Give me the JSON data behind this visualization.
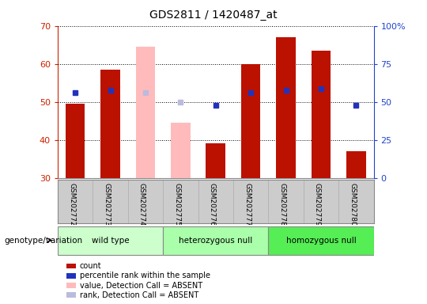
{
  "title": "GDS2811 / 1420487_at",
  "samples": [
    "GSM202772",
    "GSM202773",
    "GSM202774",
    "GSM202775",
    "GSM202776",
    "GSM202777",
    "GSM202778",
    "GSM202779",
    "GSM202780"
  ],
  "count_values": [
    49.5,
    58.5,
    null,
    null,
    39.0,
    60.0,
    67.0,
    63.5,
    37.0
  ],
  "rank_values": [
    52.5,
    53.0,
    null,
    null,
    49.0,
    52.5,
    53.0,
    53.5,
    49.0
  ],
  "absent_value_values": [
    null,
    null,
    64.5,
    44.5,
    null,
    null,
    null,
    null,
    null
  ],
  "absent_rank_values": [
    null,
    null,
    52.5,
    50.0,
    null,
    null,
    null,
    null,
    null
  ],
  "ylim": [
    30,
    70
  ],
  "yticks": [
    30,
    40,
    50,
    60,
    70
  ],
  "right_yticks_vals": [
    0,
    25,
    50,
    75,
    100
  ],
  "right_yticks_labels": [
    "0",
    "25",
    "50",
    "75",
    "100%"
  ],
  "right_ylim": [
    0,
    100
  ],
  "bar_width": 0.55,
  "bar_color": "#bb1100",
  "rank_color": "#2233bb",
  "absent_value_color": "#ffbbbb",
  "absent_rank_color": "#bbbbdd",
  "groups": [
    {
      "label": "wild type",
      "samples": [
        0,
        1,
        2
      ],
      "color": "#ccffcc"
    },
    {
      "label": "heterozygous null",
      "samples": [
        3,
        4,
        5
      ],
      "color": "#aaffaa"
    },
    {
      "label": "homozygous null",
      "samples": [
        6,
        7,
        8
      ],
      "color": "#55ee55"
    }
  ],
  "group_label": "genotype/variation",
  "legend_items": [
    {
      "label": "count",
      "color": "#bb1100"
    },
    {
      "label": "percentile rank within the sample",
      "color": "#2233bb"
    },
    {
      "label": "value, Detection Call = ABSENT",
      "color": "#ffbbbb"
    },
    {
      "label": "rank, Detection Call = ABSENT",
      "color": "#bbbbdd"
    }
  ],
  "left_tick_color": "#cc2200",
  "right_tick_color": "#2244cc",
  "bg_xtick": "#cccccc",
  "bg_plot": "#ffffff"
}
